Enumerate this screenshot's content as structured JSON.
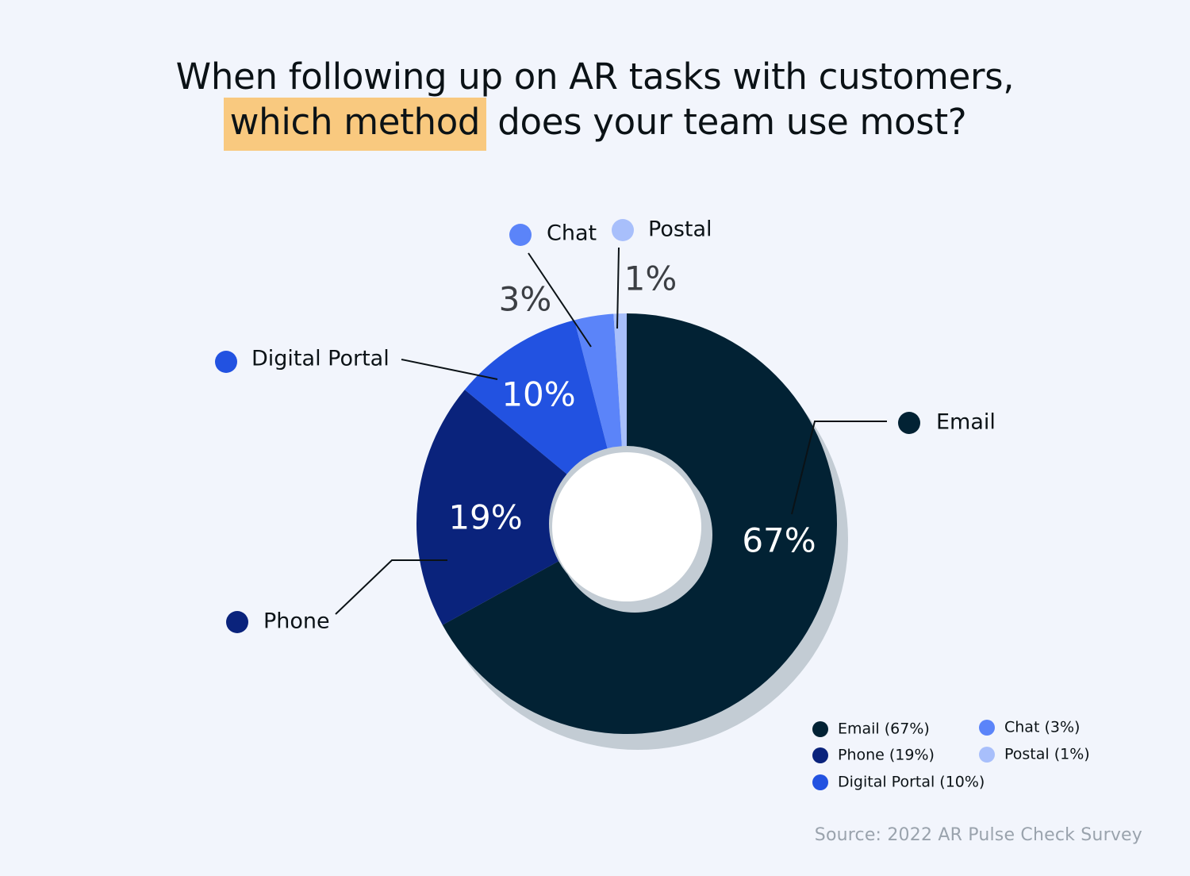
{
  "title": {
    "line1": "When following up on AR tasks with customers,",
    "highlight": "which method",
    "line2_rest": " does your team use most?"
  },
  "source": "Source: 2022 AR Pulse Check Survey",
  "chart_data": {
    "type": "pie",
    "variant": "donut",
    "categories": [
      "Email",
      "Phone",
      "Digital Portal",
      "Chat",
      "Postal"
    ],
    "values": [
      67,
      19,
      10,
      3,
      1
    ],
    "value_labels": [
      "67%",
      "19%",
      "10%",
      "3%",
      "1%"
    ],
    "legend_labels": [
      "Email (67%)",
      "Phone (19%)",
      "Digital Portal (10%)",
      "Chat (3%)",
      "Postal (1%)"
    ],
    "colors": [
      "#022234",
      "#0a237c",
      "#2252e1",
      "#5b84f9",
      "#a8bffb"
    ],
    "legend_position": "bottom-right"
  }
}
